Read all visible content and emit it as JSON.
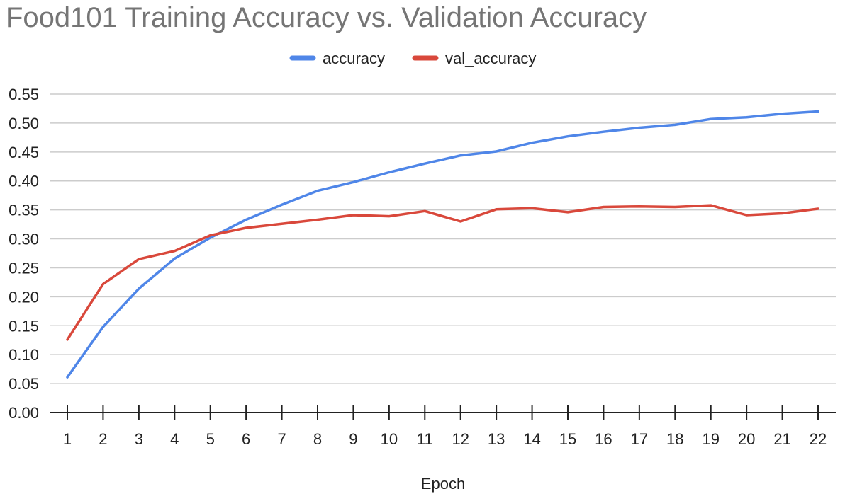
{
  "chart_data": {
    "type": "line",
    "title": "Food101 Training Accuracy vs. Validation Accuracy",
    "xlabel": "Epoch",
    "ylabel": "",
    "x": [
      1,
      2,
      3,
      4,
      5,
      6,
      7,
      8,
      9,
      10,
      11,
      12,
      13,
      14,
      15,
      16,
      17,
      18,
      19,
      20,
      21,
      22
    ],
    "ylim": [
      0,
      0.55
    ],
    "yticks": [
      "0.00",
      "0.05",
      "0.10",
      "0.15",
      "0.20",
      "0.25",
      "0.30",
      "0.35",
      "0.40",
      "0.45",
      "0.50",
      "0.55"
    ],
    "grid": true,
    "legend_position": "top",
    "series": [
      {
        "name": "accuracy",
        "color": "#4F86E8",
        "values": [
          0.061,
          0.148,
          0.214,
          0.266,
          0.302,
          0.333,
          0.359,
          0.383,
          0.398,
          0.415,
          0.43,
          0.444,
          0.451,
          0.466,
          0.477,
          0.485,
          0.492,
          0.497,
          0.507,
          0.51,
          0.516,
          0.52
        ]
      },
      {
        "name": "val_accuracy",
        "color": "#D9483B",
        "values": [
          0.126,
          0.222,
          0.265,
          0.279,
          0.306,
          0.319,
          0.326,
          0.333,
          0.341,
          0.339,
          0.348,
          0.33,
          0.351,
          0.353,
          0.346,
          0.355,
          0.356,
          0.355,
          0.358,
          0.341,
          0.344,
          0.352
        ]
      }
    ]
  }
}
